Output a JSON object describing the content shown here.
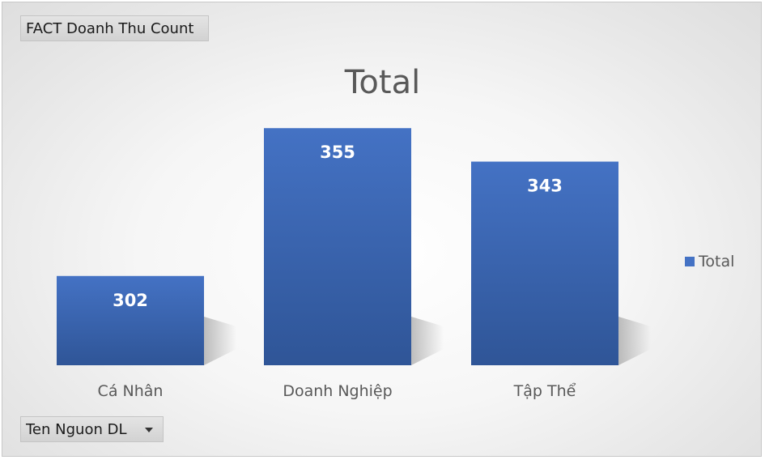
{
  "value_field_button": {
    "label": "FACT Doanh Thu Count"
  },
  "axis_field_button": {
    "label": "Ten Nguon DL"
  },
  "colors": {
    "bar": "#4472c4",
    "bar_dark": "#2f5597",
    "label": "#ffffff",
    "text": "#595959"
  },
  "chart_data": {
    "type": "bar",
    "title": "Total",
    "categories": [
      "Cá Nhân",
      "Doanh Nghiệp",
      "Tập Thể"
    ],
    "series": [
      {
        "name": "Total",
        "values": [
          302,
          355,
          343
        ]
      }
    ],
    "ylim": [
      270,
      360
    ],
    "grid": false,
    "legend": "right",
    "data_labels": true
  }
}
